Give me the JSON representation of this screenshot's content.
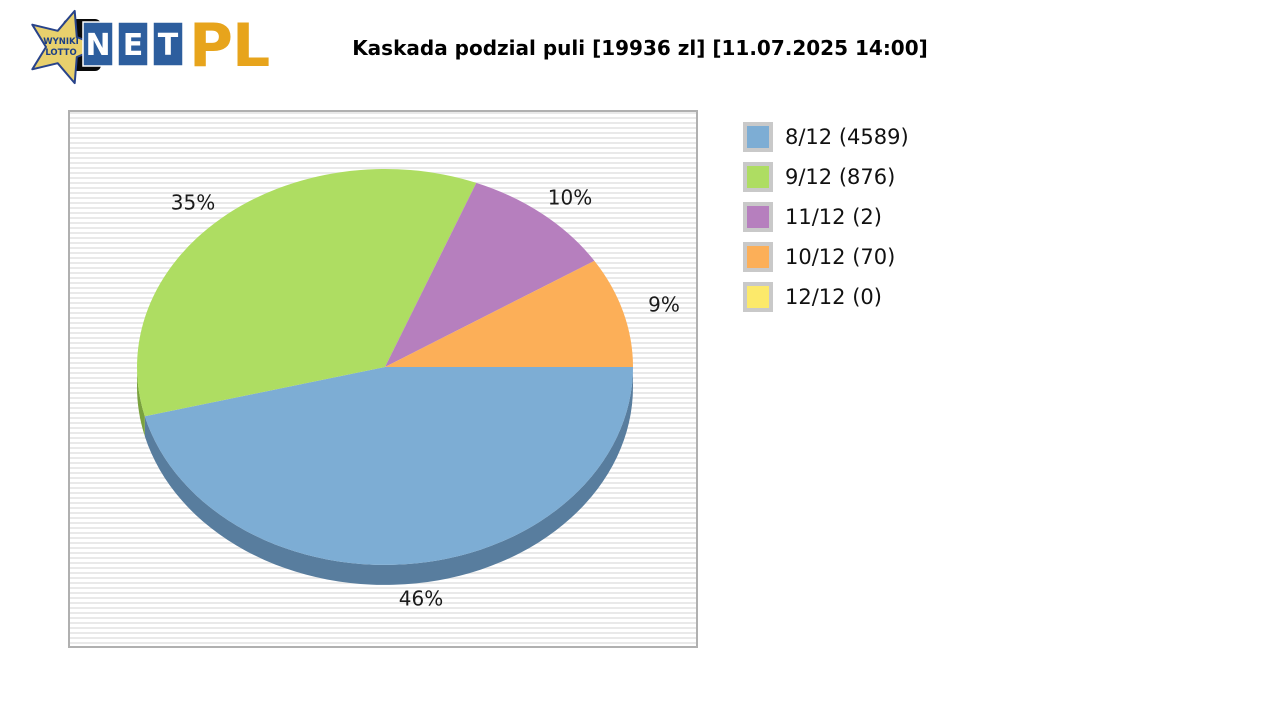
{
  "logo": {
    "star_text_line1": "WYNIKI",
    "star_text_line2": "LOTTO",
    "tiles": [
      "N",
      "E",
      "T"
    ],
    "suffix": "PL",
    "star_color": "#e8d06d",
    "star_outline_color": "#28438a",
    "tile_color": "#2d5e9e",
    "suffix_color": "#e7a41c"
  },
  "title": "Kaskada podzial puli [19936 zl] [11.07.2025 14:00]",
  "chart_data": {
    "type": "pie",
    "title": "Kaskada podzial puli [19936 zl] [11.07.2025 14:00]",
    "effect_3d": true,
    "start_angle_deg": 0,
    "direction": "clockwise-from-east",
    "legend_position": "right",
    "background_stripe_colors": [
      "#e9e9e9",
      "#ffffff"
    ],
    "slices": [
      {
        "label": "8/12",
        "count": 4589,
        "percent": 46,
        "color": "#7dadd4",
        "dark_color": "#587d9e"
      },
      {
        "label": "9/12",
        "count": 876,
        "percent": 35,
        "color": "#aedd62",
        "dark_color": "#7aa23e"
      },
      {
        "label": "11/12",
        "count": 2,
        "percent": 10,
        "color": "#b67fbe",
        "dark_color": "#80588a"
      },
      {
        "label": "10/12",
        "count": 70,
        "percent": 9,
        "color": "#fcaf58",
        "dark_color": "#b5803f"
      },
      {
        "label": "12/12",
        "count": 0,
        "percent": 0,
        "color": "#fce96a",
        "dark_color": "#b3a548"
      }
    ],
    "legend_labels": [
      "8/12 (4589)",
      "9/12 (876)",
      "11/12 (2)",
      "10/12 (70)",
      "12/12 (0)"
    ]
  }
}
